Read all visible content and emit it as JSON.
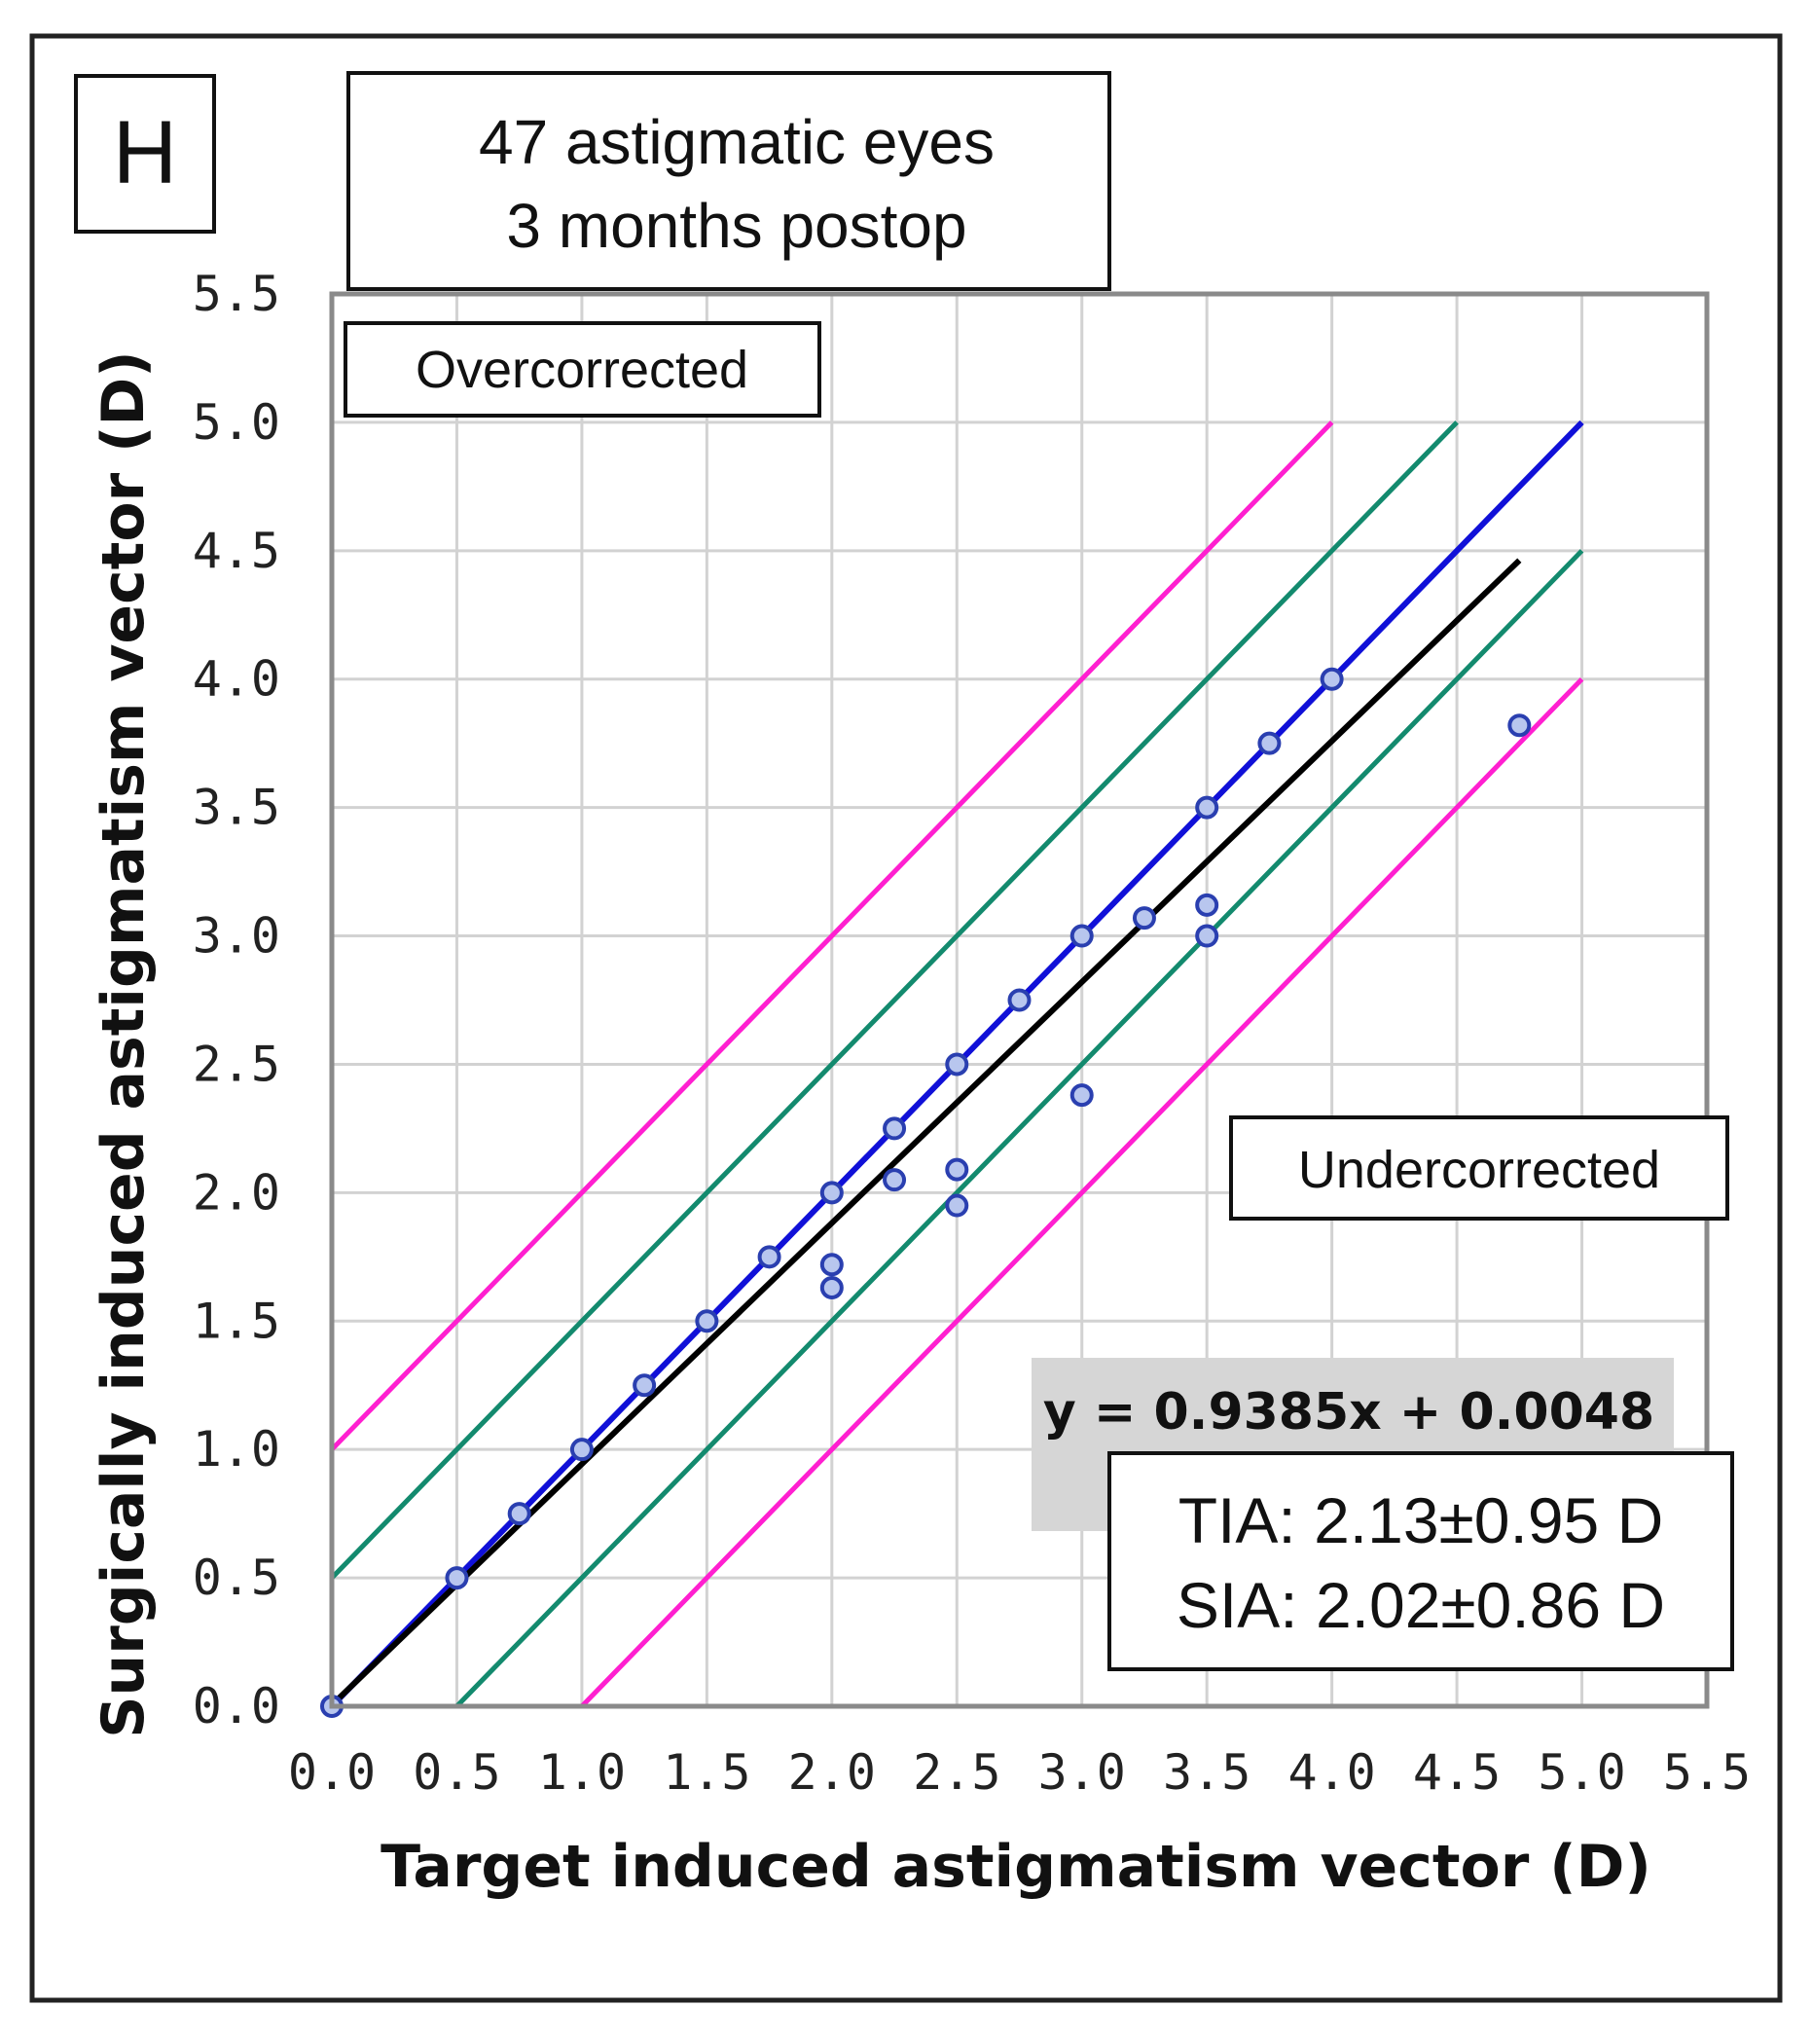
{
  "chart_data": {
    "type": "scatter",
    "panel_label": "H",
    "title_lines": [
      "47 astigmatic eyes",
      "3 months postop"
    ],
    "xlabel": "Target induced astigmatism vector (D)",
    "ylabel": "Surgically induced astigmatism vector (D)",
    "xlim": [
      0,
      5.5
    ],
    "ylim": [
      0,
      5.5
    ],
    "grid": true,
    "x_ticks": [
      "0.0",
      "0.5",
      "1.0",
      "1.5",
      "2.0",
      "2.5",
      "3.0",
      "3.5",
      "4.0",
      "4.5",
      "5.0",
      "5.5"
    ],
    "y_ticks": [
      "0.0",
      "0.5",
      "1.0",
      "1.5",
      "2.0",
      "2.5",
      "3.0",
      "3.5",
      "4.0",
      "4.5",
      "5.0",
      "5.5"
    ],
    "region_labels": {
      "over": "Overcorrected",
      "under": "Undercorrected"
    },
    "equation": "y = 0.9385x + 0.0048",
    "stats": [
      "TIA: 2.13±0.95 D",
      "SIA: 2.02±0.86 D"
    ],
    "colors": {
      "points": "#2a3fb0",
      "identity": "#1010d8",
      "regression": "#000000",
      "band_half": "#138a6e",
      "band_one": "#ff1fd0",
      "grid": "#d2d2d2",
      "plot_border": "#7a7a7a"
    },
    "reference_lines": [
      {
        "name": "identity",
        "offset": 0,
        "x_range": [
          0,
          5.0
        ]
      },
      {
        "name": "+0.5 D",
        "offset": 0.5,
        "x_range": [
          0,
          4.5
        ]
      },
      {
        "name": "-0.5 D",
        "offset": -0.5,
        "x_range": [
          0.5,
          5.0
        ]
      },
      {
        "name": "+1.0 D",
        "offset": 1.0,
        "x_range": [
          0,
          4.0
        ]
      },
      {
        "name": "-1.0 D",
        "offset": -1.0,
        "x_range": [
          1.0,
          5.0
        ]
      }
    ],
    "regression": {
      "slope": 0.9385,
      "intercept": 0.0048,
      "x_range": [
        0,
        4.75
      ]
    },
    "points": [
      {
        "x": 0.0,
        "y": 0.0
      },
      {
        "x": 0.5,
        "y": 0.5
      },
      {
        "x": 0.75,
        "y": 0.75
      },
      {
        "x": 1.0,
        "y": 1.0
      },
      {
        "x": 1.25,
        "y": 1.25
      },
      {
        "x": 1.5,
        "y": 1.5
      },
      {
        "x": 1.75,
        "y": 1.75
      },
      {
        "x": 2.0,
        "y": 2.0
      },
      {
        "x": 2.0,
        "y": 1.72
      },
      {
        "x": 2.0,
        "y": 1.63
      },
      {
        "x": 2.25,
        "y": 2.25
      },
      {
        "x": 2.25,
        "y": 2.05
      },
      {
        "x": 2.5,
        "y": 2.5
      },
      {
        "x": 2.5,
        "y": 2.09
      },
      {
        "x": 2.5,
        "y": 1.95
      },
      {
        "x": 2.75,
        "y": 2.75
      },
      {
        "x": 3.0,
        "y": 3.0
      },
      {
        "x": 3.0,
        "y": 2.38
      },
      {
        "x": 3.25,
        "y": 3.07
      },
      {
        "x": 3.5,
        "y": 3.5
      },
      {
        "x": 3.5,
        "y": 3.12
      },
      {
        "x": 3.5,
        "y": 3.0
      },
      {
        "x": 3.75,
        "y": 3.75
      },
      {
        "x": 4.0,
        "y": 4.0
      },
      {
        "x": 4.75,
        "y": 3.82
      }
    ]
  }
}
